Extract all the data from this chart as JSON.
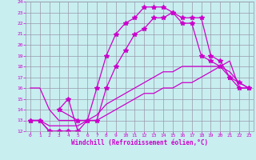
{
  "title": "",
  "xlabel": "Windchill (Refroidissement éolien,°C)",
  "bg_color": "#c8eef0",
  "line_color": "#cc00cc",
  "grid_color": "#9999aa",
  "xlim": [
    -0.5,
    23.5
  ],
  "ylim": [
    12,
    24
  ],
  "xticks": [
    0,
    1,
    2,
    3,
    4,
    5,
    6,
    7,
    8,
    9,
    10,
    11,
    12,
    13,
    14,
    15,
    16,
    17,
    18,
    19,
    20,
    21,
    22,
    23
  ],
  "yticks": [
    12,
    13,
    14,
    15,
    16,
    17,
    18,
    19,
    20,
    21,
    22,
    23,
    24
  ],
  "line1_x": [
    0,
    1,
    2,
    3,
    4,
    5,
    4,
    3,
    5,
    6,
    7,
    8,
    9,
    10,
    11,
    12,
    13,
    14,
    15,
    16,
    17,
    18,
    19,
    20,
    21,
    22,
    23
  ],
  "line1_y": [
    13,
    13,
    12,
    12,
    12,
    12,
    15,
    14,
    13,
    13,
    16,
    19,
    21,
    22,
    22.5,
    23.5,
    23.5,
    23.5,
    23,
    22,
    22,
    19,
    18.5,
    18,
    17,
    16,
    16
  ],
  "line2_x": [
    0,
    1,
    2,
    3,
    4,
    5,
    6,
    7,
    8,
    9,
    10,
    11,
    12,
    13,
    14,
    15,
    16,
    17,
    18,
    19,
    20,
    21,
    22,
    23
  ],
  "line2_y": [
    13,
    13,
    12,
    12,
    12,
    12,
    13,
    13,
    16,
    18,
    19.5,
    21,
    21.5,
    22.5,
    22.5,
    23,
    22.5,
    22.5,
    22.5,
    19,
    18.5,
    17,
    16.5,
    16
  ],
  "line3_x": [
    0,
    1,
    2,
    3,
    4,
    5,
    6,
    7,
    8,
    9,
    10,
    11,
    12,
    13,
    14,
    15,
    16,
    17,
    18,
    19,
    20,
    21,
    22,
    23
  ],
  "line3_y": [
    13,
    13,
    12.5,
    12.5,
    12.5,
    12.5,
    13,
    13.5,
    14.5,
    15,
    15.5,
    16,
    16.5,
    17,
    17.5,
    17.5,
    18,
    18,
    18,
    18,
    18,
    17.5,
    16.5,
    16
  ],
  "line4_x": [
    0,
    1,
    2,
    3,
    4,
    5,
    6,
    7,
    8,
    9,
    10,
    11,
    12,
    13,
    14,
    15,
    16,
    17,
    18,
    19,
    20,
    21,
    22,
    23
  ],
  "line4_y": [
    16,
    16,
    14,
    13,
    13,
    13,
    13,
    13,
    13.5,
    14,
    14.5,
    15,
    15.5,
    15.5,
    16,
    16,
    16.5,
    16.5,
    17,
    17.5,
    18,
    18.5,
    16,
    16
  ],
  "marker": "*",
  "markersize": 4,
  "linewidth": 0.9
}
